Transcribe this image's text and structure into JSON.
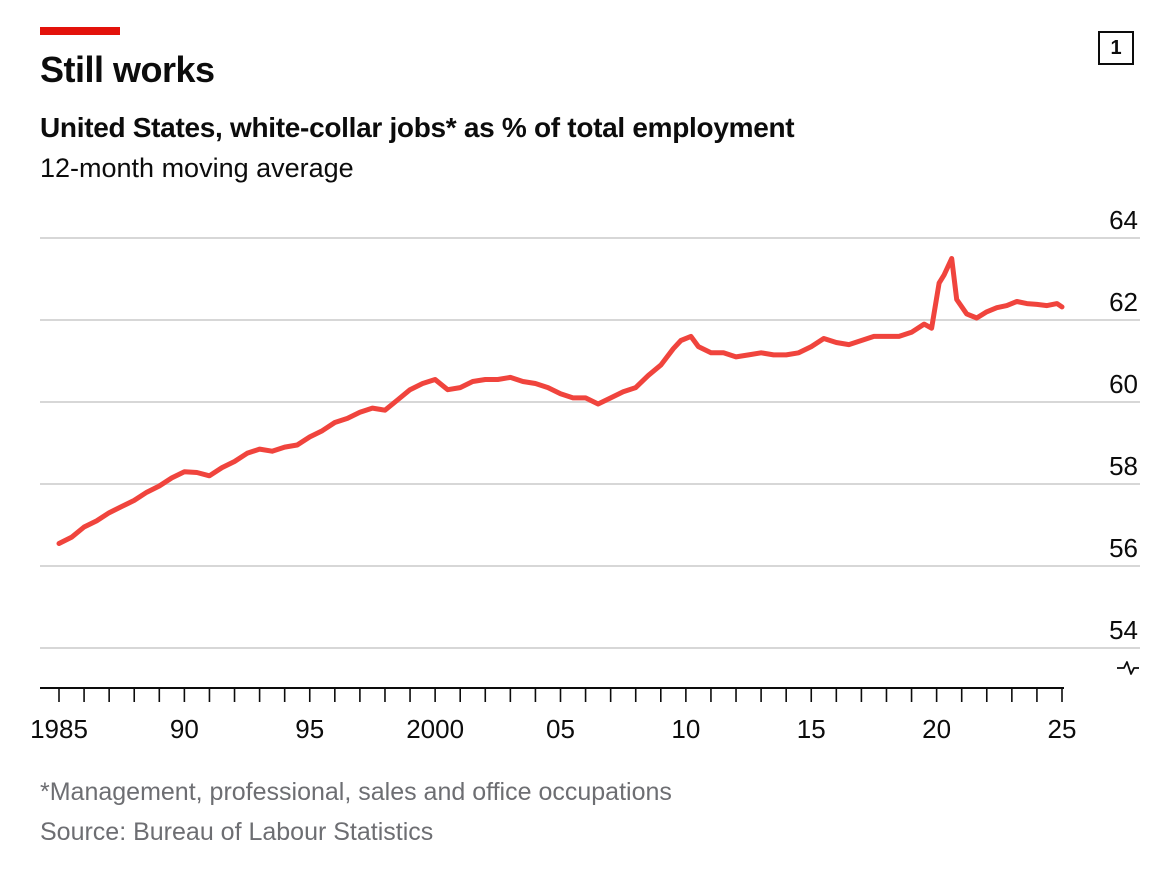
{
  "header": {
    "title": "Still works",
    "chart_number": "1"
  },
  "footer": {
    "footnote": "*Management, professional, sales and office occupations",
    "source": "Source: Bureau of Labour Statistics"
  },
  "colors": {
    "accent": "#e3120b",
    "line": "#f0443d",
    "grid": "#d7d7d7",
    "axis": "#0c0c0c",
    "footer_text": "#6d6e72"
  },
  "chart_data": {
    "type": "line",
    "title": "United States, white-collar jobs* as % of total employment",
    "subtitle": "12-month moving average",
    "xlabel": "",
    "ylabel": "",
    "xlim": [
      1985,
      2025.5
    ],
    "ylim": [
      54,
      64
    ],
    "y_ticks": [
      {
        "value": 64,
        "label": "64"
      },
      {
        "value": 62,
        "label": "62"
      },
      {
        "value": 60,
        "label": "60"
      },
      {
        "value": 58,
        "label": "58"
      },
      {
        "value": 56,
        "label": "56"
      },
      {
        "value": 54,
        "label": "54"
      }
    ],
    "y_axis_break": true,
    "x_ticks": [
      {
        "value": 1985,
        "label": "1985"
      },
      {
        "value": 1990,
        "label": "90"
      },
      {
        "value": 1995,
        "label": "95"
      },
      {
        "value": 2000,
        "label": "2000"
      },
      {
        "value": 2005,
        "label": "05"
      },
      {
        "value": 2010,
        "label": "10"
      },
      {
        "value": 2015,
        "label": "15"
      },
      {
        "value": 2020,
        "label": "20"
      },
      {
        "value": 2025,
        "label": "25"
      }
    ],
    "grid": true,
    "legend": "none",
    "series": [
      {
        "x": [
          1985.0,
          1985.5,
          1986.0,
          1986.5,
          1987.0,
          1987.5,
          1988.0,
          1988.5,
          1989.0,
          1989.5,
          1990.0,
          1990.5,
          1991.0,
          1991.5,
          1992.0,
          1992.5,
          1993.0,
          1993.5,
          1994.0,
          1994.5,
          1995.0,
          1995.5,
          1996.0,
          1996.5,
          1997.0,
          1997.5,
          1998.0,
          1998.5,
          1999.0,
          1999.5,
          2000.0,
          2000.5,
          2001.0,
          2001.5,
          2002.0,
          2002.5,
          2003.0,
          2003.5,
          2004.0,
          2004.5,
          2005.0,
          2005.5,
          2006.0,
          2006.5,
          2007.0,
          2007.5,
          2008.0,
          2008.5,
          2009.0,
          2009.5,
          2009.8,
          2010.2,
          2010.5,
          2011.0,
          2011.5,
          2012.0,
          2012.5,
          2013.0,
          2013.5,
          2014.0,
          2014.5,
          2015.0,
          2015.5,
          2016.0,
          2016.5,
          2017.0,
          2017.5,
          2018.0,
          2018.5,
          2019.0,
          2019.5,
          2019.8,
          2020.1,
          2020.3,
          2020.6,
          2020.8,
          2021.2,
          2021.6,
          2022.0,
          2022.4,
          2022.8,
          2023.2,
          2023.6,
          2024.0,
          2024.4,
          2024.8,
          2025.0
        ],
        "y": [
          56.55,
          56.7,
          56.95,
          57.1,
          57.3,
          57.45,
          57.6,
          57.8,
          57.95,
          58.15,
          58.3,
          58.28,
          58.2,
          58.4,
          58.55,
          58.75,
          58.85,
          58.8,
          58.9,
          58.95,
          59.15,
          59.3,
          59.5,
          59.6,
          59.75,
          59.85,
          59.8,
          60.05,
          60.3,
          60.45,
          60.55,
          60.3,
          60.35,
          60.5,
          60.55,
          60.55,
          60.6,
          60.5,
          60.45,
          60.35,
          60.2,
          60.1,
          60.1,
          59.95,
          60.1,
          60.25,
          60.35,
          60.65,
          60.9,
          61.3,
          61.5,
          61.6,
          61.35,
          61.2,
          61.2,
          61.1,
          61.15,
          61.2,
          61.15,
          61.15,
          61.2,
          61.35,
          61.55,
          61.45,
          61.4,
          61.5,
          61.6,
          61.6,
          61.6,
          61.7,
          61.9,
          61.8,
          62.9,
          63.1,
          63.5,
          62.5,
          62.15,
          62.05,
          62.2,
          62.3,
          62.35,
          62.45,
          62.4,
          62.38,
          62.35,
          62.4,
          62.32
        ]
      }
    ]
  }
}
